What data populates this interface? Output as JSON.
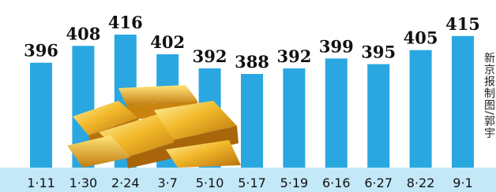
{
  "chart_data": {
    "type": "bar",
    "categories": [
      "1·11",
      "1·30",
      "2·24",
      "3·7",
      "5·10",
      "5·17",
      "5·19",
      "6·16",
      "6·27",
      "8·22",
      "9·1"
    ],
    "values": [
      396,
      408,
      416,
      402,
      392,
      388,
      392,
      399,
      395,
      405,
      415
    ],
    "color": "#2aa7e1",
    "credit": "新京报制图/郭宇"
  }
}
